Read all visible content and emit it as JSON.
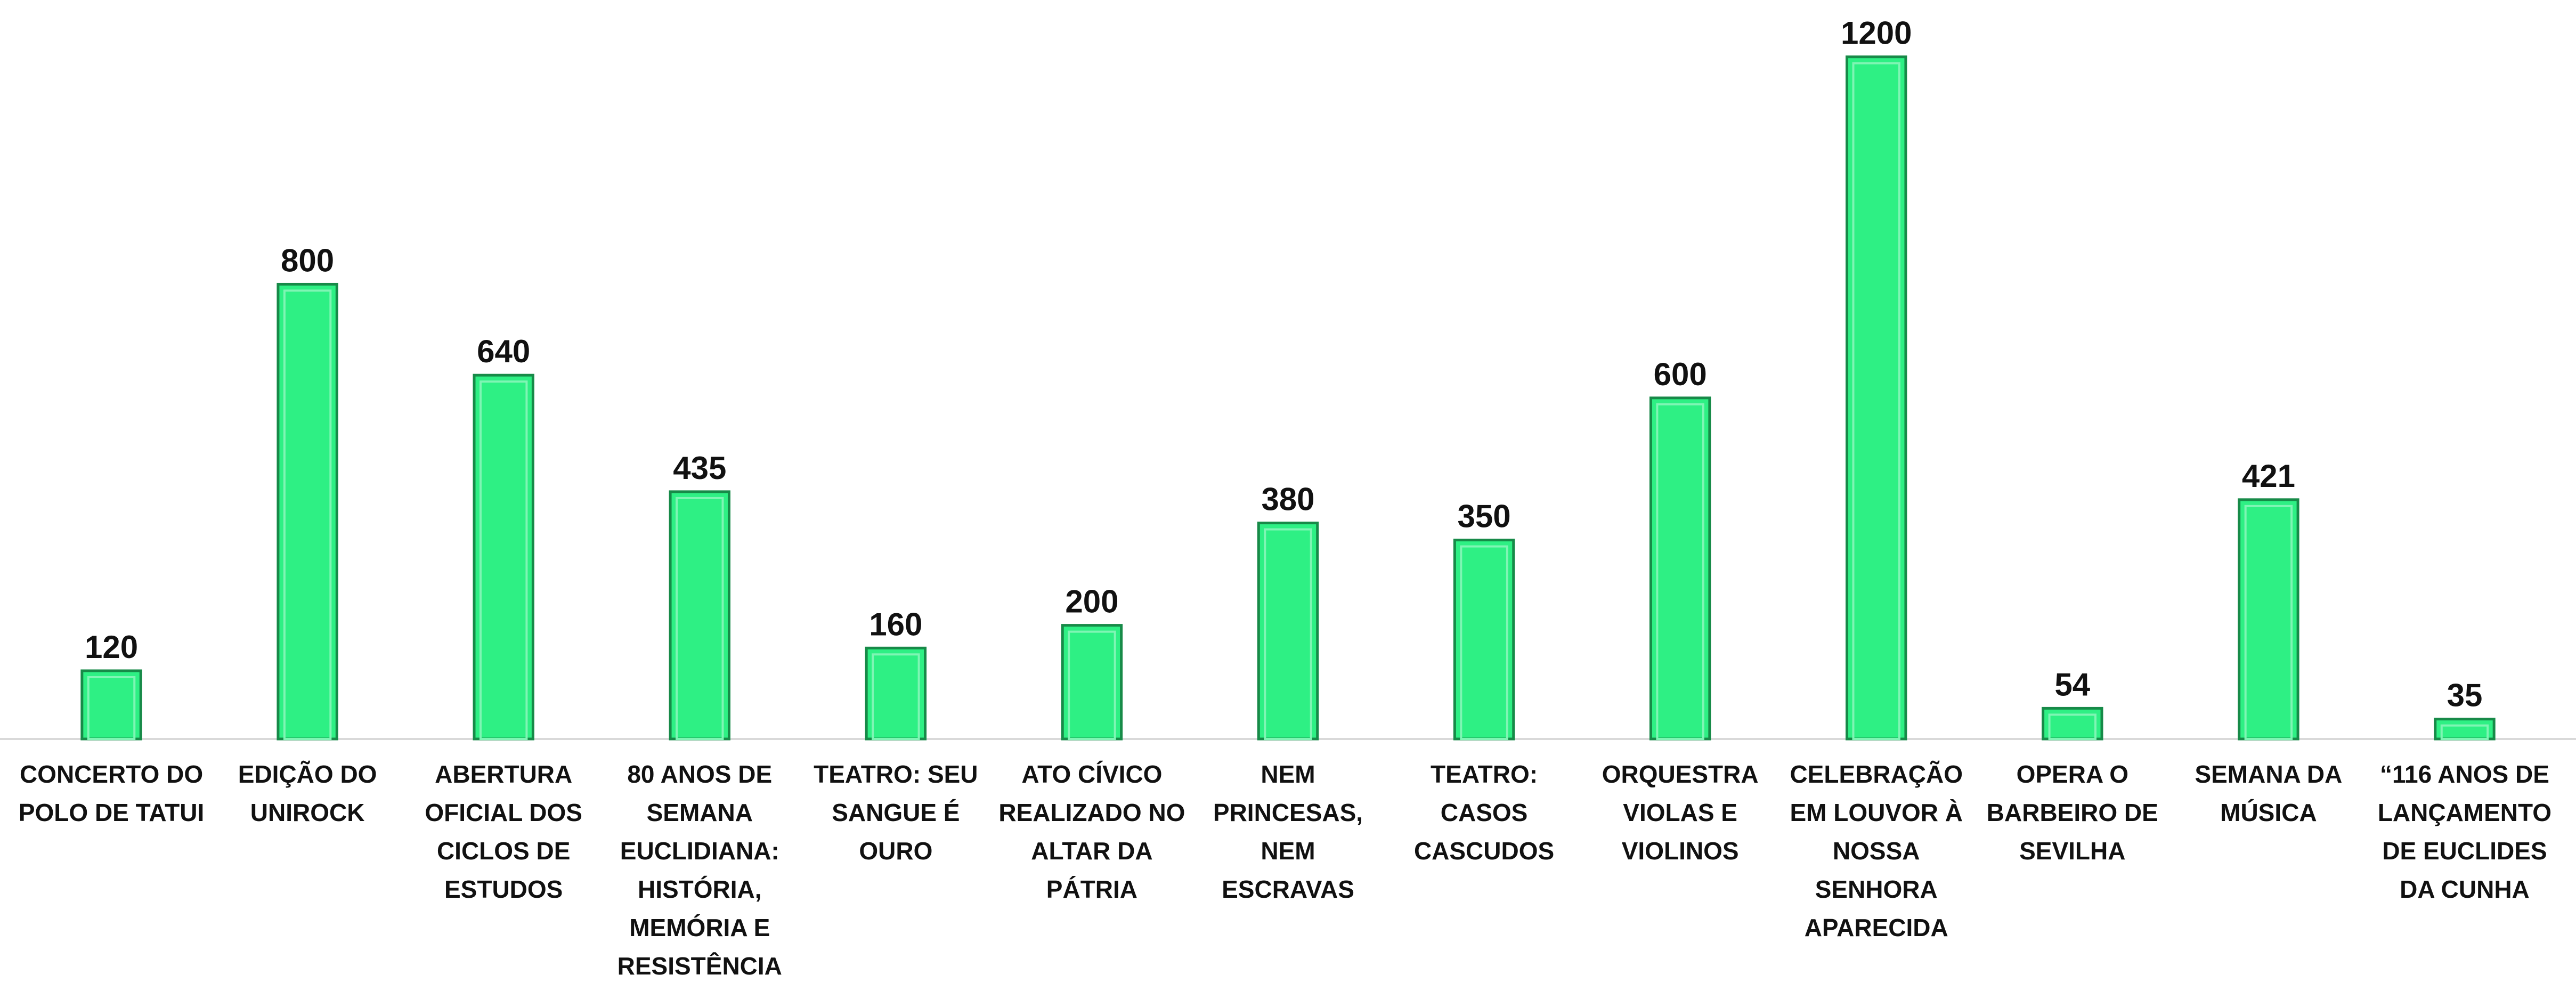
{
  "chart_data": {
    "type": "bar",
    "categories": [
      "CONCERTO DO POLO DE TATUI",
      "EDIÇÃO DO UNIROCK",
      "ABERTURA OFICIAL DOS CICLOS DE ESTUDOS",
      "80 ANOS DE SEMANA EUCLIDIANA: HISTÓRIA, MEMÓRIA E RESISTÊNCIA",
      "TEATRO: SEU SANGUE É OURO",
      "ATO CÍVICO REALIZADO NO ALTAR DA PÁTRIA",
      "NEM PRINCESAS, NEM ESCRAVAS",
      "TEATRO: CASOS CASCUDOS",
      "ORQUESTRA VIOLAS E VIOLINOS",
      "CELEBRAÇÃO EM LOUVOR À NOSSA SENHORA APARECIDA",
      "OPERA O BARBEIRO DE SEVILHA",
      "SEMANA DA MÚSICA",
      "“116 ANOS DE LANÇAMENTO DE EUCLIDES DA CUNHA"
    ],
    "values": [
      120,
      800,
      640,
      435,
      160,
      200,
      380,
      350,
      600,
      1200,
      54,
      421,
      35
    ],
    "color": "#2ef084",
    "ylim": [
      0,
      1300
    ]
  }
}
